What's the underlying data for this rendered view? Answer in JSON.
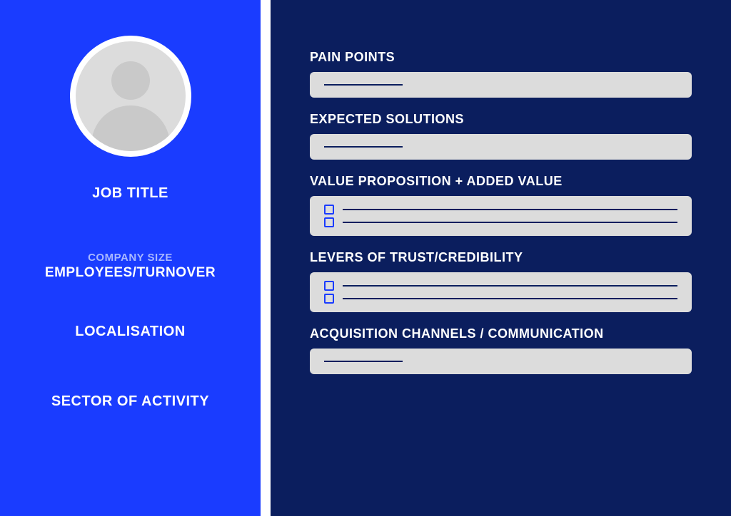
{
  "colors": {
    "left_bg": "#1a3cff",
    "right_bg": "#0b1e5e",
    "field_bg": "#dcdcdc",
    "line_color": "#0b1e5e",
    "checkbox_border": "#1a3cff",
    "white": "#ffffff",
    "sublabel_color": "#a9b8ff"
  },
  "left": {
    "job_title": "JOB TITLE",
    "company_size_label": "COMPANY SIZE",
    "company_size_value": "EMPLOYEES/TURNOVER",
    "localisation": "LOCALISATION",
    "sector": "SECTOR OF ACTIVITY"
  },
  "sections": {
    "pain_points": {
      "heading": "PAIN POINTS",
      "type": "text",
      "line_width": 110
    },
    "expected_solutions": {
      "heading": "EXPECTED SOLUTIONS",
      "type": "text",
      "line_width": 110
    },
    "value_proposition": {
      "heading": "VALUE PROPOSITION + ADDED VALUE",
      "type": "checklist",
      "items": 2
    },
    "levers": {
      "heading": "LEVERS OF TRUST/CREDIBILITY",
      "type": "checklist",
      "items": 2
    },
    "acquisition": {
      "heading": "ACQUISITION CHANNELS / COMMUNICATION",
      "type": "text",
      "line_width": 110
    }
  },
  "layout": {
    "text_box_height": 36,
    "checklist_box_height": 56
  }
}
